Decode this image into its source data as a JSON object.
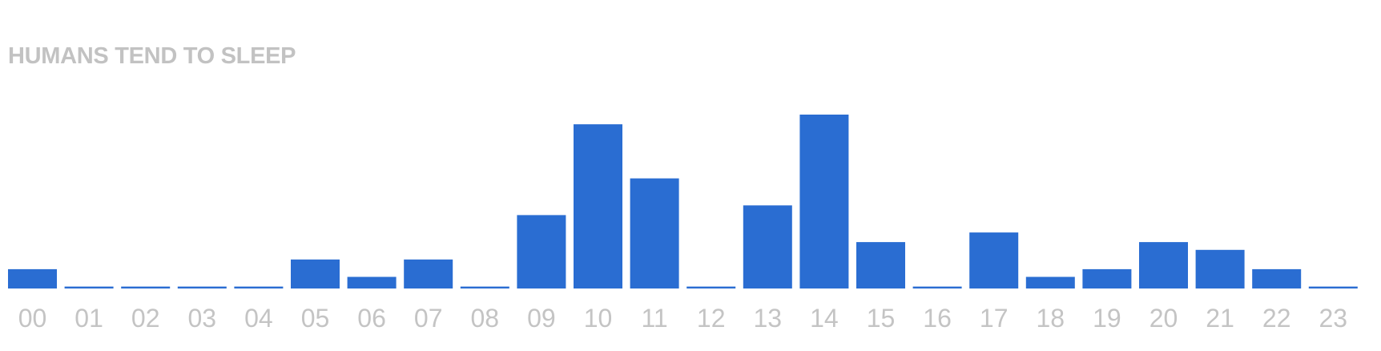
{
  "colors": {
    "bar": "#2a6dd2",
    "title": "#c2c2c2",
    "tick_label": "#c4c4c4"
  },
  "chart_data": {
    "type": "bar",
    "title": "HUMANS TEND TO SLEEP",
    "categories": [
      "00",
      "01",
      "02",
      "03",
      "04",
      "05",
      "06",
      "07",
      "08",
      "09",
      "10",
      "11",
      "12",
      "13",
      "14",
      "15",
      "16",
      "17",
      "18",
      "19",
      "20",
      "21",
      "22",
      "23"
    ],
    "values": [
      2,
      0.2,
      0.2,
      0.2,
      0.2,
      3,
      1.2,
      3,
      0.2,
      7.6,
      17,
      11.4,
      0.2,
      8.6,
      18,
      4.8,
      0.2,
      5.8,
      1.2,
      2,
      4.8,
      4,
      2,
      0.2
    ],
    "ylim": [
      0,
      18
    ],
    "xlabel": "",
    "ylabel": "",
    "grid": false,
    "legend": "none"
  }
}
